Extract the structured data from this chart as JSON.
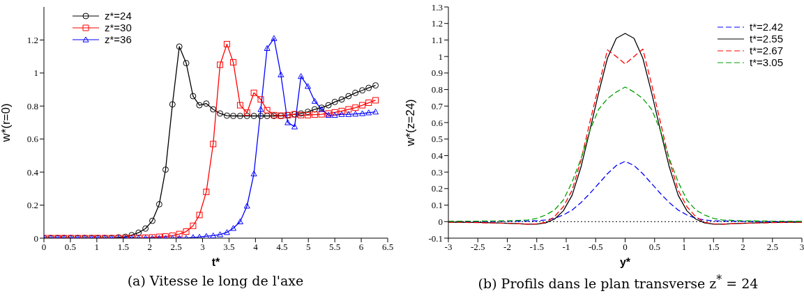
{
  "chart_data": [
    {
      "type": "line",
      "xlabel": "t*",
      "ylabel": "w*(r=0)",
      "annotations": [
        "(a) Vitesse le long de l'axe"
      ],
      "xlim": [
        0,
        6.5
      ],
      "xticks": [
        0,
        0.5,
        1,
        1.5,
        2,
        2.5,
        3,
        3.5,
        4,
        4.5,
        5,
        5.5,
        6,
        6.5
      ],
      "ylim": [
        0,
        1.4
      ],
      "yticks": [
        0,
        0.2,
        0.4,
        0.6,
        0.8,
        1,
        1.2
      ],
      "grid": false,
      "legend": "top left",
      "line_style": "solid",
      "x": [
        0,
        0.13,
        0.26,
        0.38,
        0.51,
        0.64,
        0.77,
        0.9,
        1.02,
        1.15,
        1.28,
        1.41,
        1.54,
        1.66,
        1.79,
        1.92,
        2.05,
        2.18,
        2.3,
        2.43,
        2.56,
        2.69,
        2.82,
        2.94,
        3.07,
        3.2,
        3.33,
        3.46,
        3.58,
        3.71,
        3.84,
        3.97,
        4.1,
        4.22,
        4.35,
        4.48,
        4.61,
        4.74,
        4.86,
        4.99,
        5.12,
        5.25,
        5.38,
        5.5,
        5.63,
        5.76,
        5.89,
        6.02,
        6.14,
        6.27
      ],
      "series": [
        {
          "name": "z*=24",
          "color": "#000000",
          "marker": "circle",
          "values": [
            0,
            0,
            0,
            0,
            0,
            0,
            0,
            0,
            0,
            0,
            0,
            0.005,
            0.008,
            0.018,
            0.033,
            0.058,
            0.105,
            0.205,
            0.415,
            0.81,
            1.16,
            1.06,
            0.86,
            0.805,
            0.815,
            0.78,
            0.755,
            0.742,
            0.74,
            0.74,
            0.74,
            0.74,
            0.74,
            0.74,
            0.74,
            0.74,
            0.745,
            0.75,
            0.755,
            0.765,
            0.78,
            0.79,
            0.805,
            0.825,
            0.84,
            0.86,
            0.88,
            0.895,
            0.91,
            0.925
          ]
        },
        {
          "name": "z*=30",
          "color": "#ff0000",
          "marker": "square",
          "values": [
            0,
            0,
            0,
            0,
            0,
            0,
            0,
            0,
            0,
            0,
            0,
            0,
            0,
            0,
            0,
            0.003,
            0.005,
            0.008,
            0.01,
            0.015,
            0.025,
            0.04,
            0.075,
            0.14,
            0.28,
            0.57,
            1.05,
            1.175,
            1.065,
            0.805,
            0.76,
            0.88,
            0.84,
            0.775,
            0.745,
            0.742,
            0.745,
            0.75,
            0.745,
            0.745,
            0.748,
            0.75,
            0.755,
            0.762,
            0.77,
            0.78,
            0.79,
            0.805,
            0.82,
            0.835
          ]
        },
        {
          "name": "z*=36",
          "color": "#0000ff",
          "marker": "triangle",
          "values": [
            0,
            0,
            0,
            0,
            0,
            0,
            0,
            0,
            0,
            0,
            0,
            0,
            0,
            0,
            0,
            0,
            0,
            0,
            0,
            0,
            0,
            0,
            0.005,
            0.007,
            0.012,
            0.015,
            0.022,
            0.035,
            0.06,
            0.1,
            0.195,
            0.39,
            0.78,
            1.15,
            1.21,
            0.99,
            0.7,
            0.675,
            0.98,
            0.92,
            0.83,
            0.78,
            0.745,
            0.745,
            0.75,
            0.75,
            0.752,
            0.755,
            0.76,
            0.765
          ]
        }
      ]
    },
    {
      "type": "line",
      "xlabel": "y*",
      "ylabel": "w*(z=24)",
      "annotations": [
        "(b) Profils dans le plan transverse z$^{*}$ = 24"
      ],
      "xlim": [
        -3,
        3
      ],
      "xticks": [
        -3,
        -2.5,
        -2,
        -1.5,
        -1,
        -0.5,
        0,
        0.5,
        1,
        1.5,
        2,
        2.5,
        3
      ],
      "ylim": [
        -0.1,
        1.3
      ],
      "yticks": [
        -0.1,
        0,
        0.1,
        0.2,
        0.3,
        0.4,
        0.5,
        0.6,
        0.7,
        0.8,
        0.9,
        1,
        1.1,
        1.2,
        1.3
      ],
      "grid": false,
      "legend": "top right",
      "marker": "none",
      "ref_lines": [
        {
          "axis": "y",
          "value": 0,
          "color": "#000000",
          "line_style": "dotted"
        }
      ],
      "x": [
        -3,
        -2.5,
        -2,
        -1.65,
        -1.5,
        -1.35,
        -1.2,
        -1.05,
        -0.9,
        -0.75,
        -0.6,
        -0.45,
        -0.3,
        -0.15,
        0,
        0.15,
        0.3,
        0.45,
        0.6,
        0.75,
        0.9,
        1.05,
        1.2,
        1.35,
        1.5,
        1.65,
        2,
        2.5,
        3
      ],
      "series": [
        {
          "name": "t*=2.42",
          "color": "#0000ff",
          "line_style": "dashed",
          "values": [
            0,
            0,
            0.002,
            0.004,
            0.005,
            0.01,
            0.02,
            0.04,
            0.07,
            0.115,
            0.17,
            0.23,
            0.29,
            0.34,
            0.365,
            0.34,
            0.29,
            0.23,
            0.17,
            0.115,
            0.07,
            0.04,
            0.02,
            0.01,
            0.005,
            0.004,
            0.002,
            0,
            0
          ]
        },
        {
          "name": "t*=2.55",
          "color": "#000000",
          "line_style": "solid",
          "values": [
            -0.003,
            -0.005,
            -0.01,
            -0.015,
            -0.015,
            -0.008,
            0.015,
            0.065,
            0.16,
            0.33,
            0.55,
            0.78,
            0.99,
            1.11,
            1.14,
            1.11,
            0.99,
            0.78,
            0.55,
            0.33,
            0.16,
            0.065,
            0.015,
            -0.008,
            -0.015,
            -0.015,
            -0.01,
            -0.005,
            -0.003
          ]
        },
        {
          "name": "t*=2.67",
          "color": "#ff0000",
          "line_style": "dashed",
          "values": [
            -0.003,
            -0.006,
            -0.01,
            -0.015,
            -0.013,
            -0.005,
            0.03,
            0.09,
            0.19,
            0.37,
            0.6,
            0.82,
            1.04,
            1.0,
            0.955,
            1.0,
            1.045,
            0.83,
            0.6,
            0.37,
            0.19,
            0.09,
            0.03,
            -0.005,
            -0.013,
            -0.015,
            -0.01,
            -0.006,
            -0.003
          ]
        },
        {
          "name": "t*=3.05",
          "color": "#00a000",
          "line_style": "dashed",
          "values": [
            0.002,
            0.003,
            0.005,
            0.01,
            0.02,
            0.04,
            0.07,
            0.13,
            0.24,
            0.38,
            0.55,
            0.68,
            0.745,
            0.785,
            0.815,
            0.785,
            0.745,
            0.68,
            0.55,
            0.38,
            0.24,
            0.13,
            0.07,
            0.04,
            0.02,
            0.01,
            0.005,
            0.003,
            0.002
          ]
        }
      ]
    }
  ]
}
